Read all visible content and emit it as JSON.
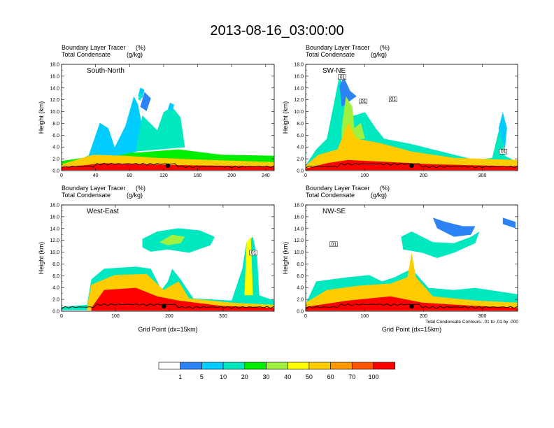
{
  "figure": {
    "title": "2013-08-16_03:00:00",
    "header_line1": "Boundary Layer Tracer",
    "header_line1_unit": "(%)",
    "header_line2": "Total Condensate",
    "header_line2_unit": "(g/kg)",
    "ylabel": "Height (km)",
    "xlabel": "Grid Point (dx=15km)",
    "contour_note": "Total Condensate Contours: .01 to .01 by .000"
  },
  "colorbar": {
    "levels": [
      "1",
      "5",
      "10",
      "20",
      "30",
      "40",
      "50",
      "60",
      "70",
      "100"
    ],
    "colors": [
      "#ffffff",
      "#2b83f6",
      "#00ccff",
      "#00e8c0",
      "#00ee00",
      "#a0f040",
      "#ffff00",
      "#ffcc00",
      "#ff9900",
      "#ff5500",
      "#ff0000"
    ]
  },
  "chart_data": [
    {
      "type": "heatmap",
      "label": "South-North",
      "xticks": [
        "0",
        "40",
        "80",
        "120",
        "160",
        "200",
        "240"
      ],
      "xlim": [
        0,
        250
      ],
      "yticks": [
        "0.0",
        "2.0",
        "4.0",
        "6.0",
        "8.0",
        "10.0",
        "12.0",
        "14.0",
        "16.0",
        "18.0"
      ],
      "ylim": [
        0,
        18
      ],
      "contour_labels": [],
      "marker_x": 125
    },
    {
      "type": "heatmap",
      "label": "SW-NE",
      "xticks": [
        "0",
        "100",
        "200",
        "300"
      ],
      "xlim": [
        0,
        360
      ],
      "yticks": [
        "0.0",
        "2.0",
        "4.0",
        "6.0",
        "8.0",
        "10.0",
        "12.0",
        "14.0",
        "16.0",
        "18.0"
      ],
      "ylim": [
        0,
        18
      ],
      "contour_labels": [
        ".01",
        ".01",
        ".01",
        ".01"
      ],
      "marker_x": 180
    },
    {
      "type": "heatmap",
      "label": "West-East",
      "xticks": [
        "0",
        "100",
        "200",
        "300"
      ],
      "xlim": [
        0,
        395
      ],
      "yticks": [
        "0.0",
        "2.0",
        "4.0",
        "6.0",
        "8.0",
        "10.0",
        "12.0",
        "14.0",
        "16.0",
        "18.0"
      ],
      "ylim": [
        0,
        18
      ],
      "contour_labels": [
        ".01"
      ],
      "marker_x": 190
    },
    {
      "type": "heatmap",
      "label": "NW-SE",
      "xticks": [
        "0",
        "100",
        "200",
        "300"
      ],
      "xlim": [
        0,
        360
      ],
      "yticks": [
        "0.0",
        "2.0",
        "4.0",
        "6.0",
        "8.0",
        "10.0",
        "12.0",
        "14.0",
        "16.0",
        "18.0"
      ],
      "ylim": [
        0,
        18
      ],
      "contour_labels": [
        ".01"
      ],
      "marker_x": 180
    }
  ]
}
